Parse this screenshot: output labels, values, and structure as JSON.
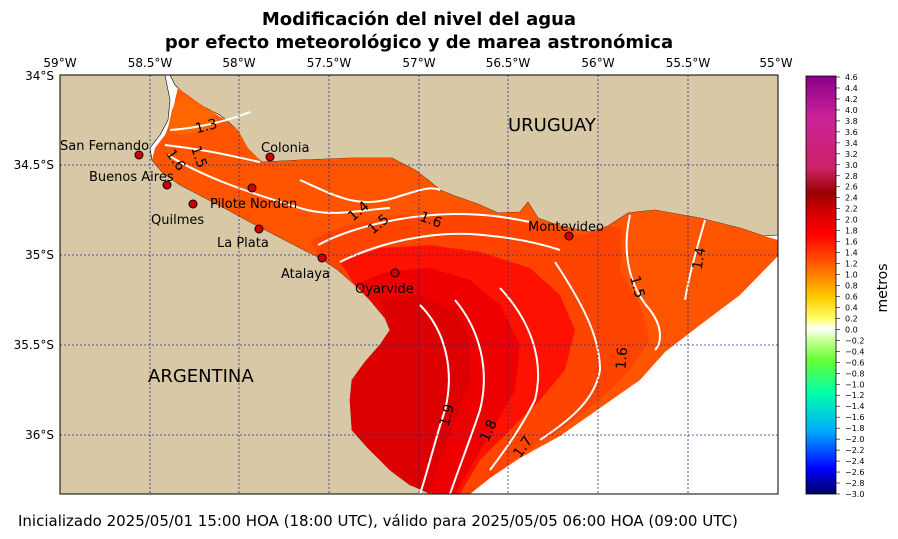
{
  "title": {
    "line1": "Modificación del nivel del agua",
    "line2": "por efecto meteorológico y de marea astronómica"
  },
  "map": {
    "lon_ticks": [
      "59°W",
      "58.5°W",
      "58°W",
      "57.5°W",
      "57°W",
      "56.5°W",
      "56°W",
      "55.5°W",
      "55°W"
    ],
    "lat_ticks": [
      "34°S",
      "34.5°S",
      "35°S",
      "35.5°S",
      "36°S"
    ],
    "lon_range": [
      -59,
      -55
    ],
    "lat_range": [
      -34,
      -36.33
    ],
    "land_color": "#d8c8a6",
    "grid_color": "#2b2b8c",
    "regions": {
      "uruguay": "URUGUAY",
      "argentina": "ARGENTINA"
    },
    "stations": [
      {
        "name": "San Fernando",
        "lon": -58.56,
        "lat": -34.44
      },
      {
        "name": "Buenos Aires",
        "lon": -58.4,
        "lat": -34.6
      },
      {
        "name": "Quilmes",
        "lon": -58.26,
        "lat": -34.71
      },
      {
        "name": "Pilote Norden",
        "lon": -57.92,
        "lat": -34.63
      },
      {
        "name": "Colonia",
        "lon": -57.83,
        "lat": -34.46
      },
      {
        "name": "La Plata",
        "lon": -57.89,
        "lat": -34.86
      },
      {
        "name": "Atalaya",
        "lon": -57.53,
        "lat": -35.02
      },
      {
        "name": "Oyarvide",
        "lon": -57.13,
        "lat": -35.1
      },
      {
        "name": "Montevideo",
        "lon": -56.16,
        "lat": -34.9
      }
    ],
    "contour_labels": [
      "1.3",
      "1.6",
      "1.5",
      "1.4",
      "1.5",
      "1.6",
      "1.5",
      "1.4",
      "1.6",
      "1.9",
      "1.8",
      "1.7"
    ]
  },
  "colorbar": {
    "label": "metros",
    "min": -3.0,
    "max": 4.6,
    "ticks": [
      "4.6",
      "4.4",
      "4.2",
      "4.0",
      "3.8",
      "3.6",
      "3.4",
      "3.2",
      "3.0",
      "2.8",
      "2.6",
      "2.4",
      "2.2",
      "2.0",
      "1.8",
      "1.6",
      "1.4",
      "1.2",
      "1.0",
      "0.8",
      "0.6",
      "0.4",
      "0.2",
      "0.0",
      "−0.2",
      "−0.4",
      "−0.6",
      "−0.8",
      "−1.0",
      "−1.2",
      "−1.4",
      "−1.6",
      "−1.8",
      "−2.0",
      "−2.2",
      "−2.4",
      "−2.6",
      "−2.8",
      "−3.0"
    ]
  },
  "footer": "Inicializado 2025/05/01 15:00 HOA (18:00 UTC), válido para 2025/05/05 06:00 HOA (09:00 UTC)"
}
